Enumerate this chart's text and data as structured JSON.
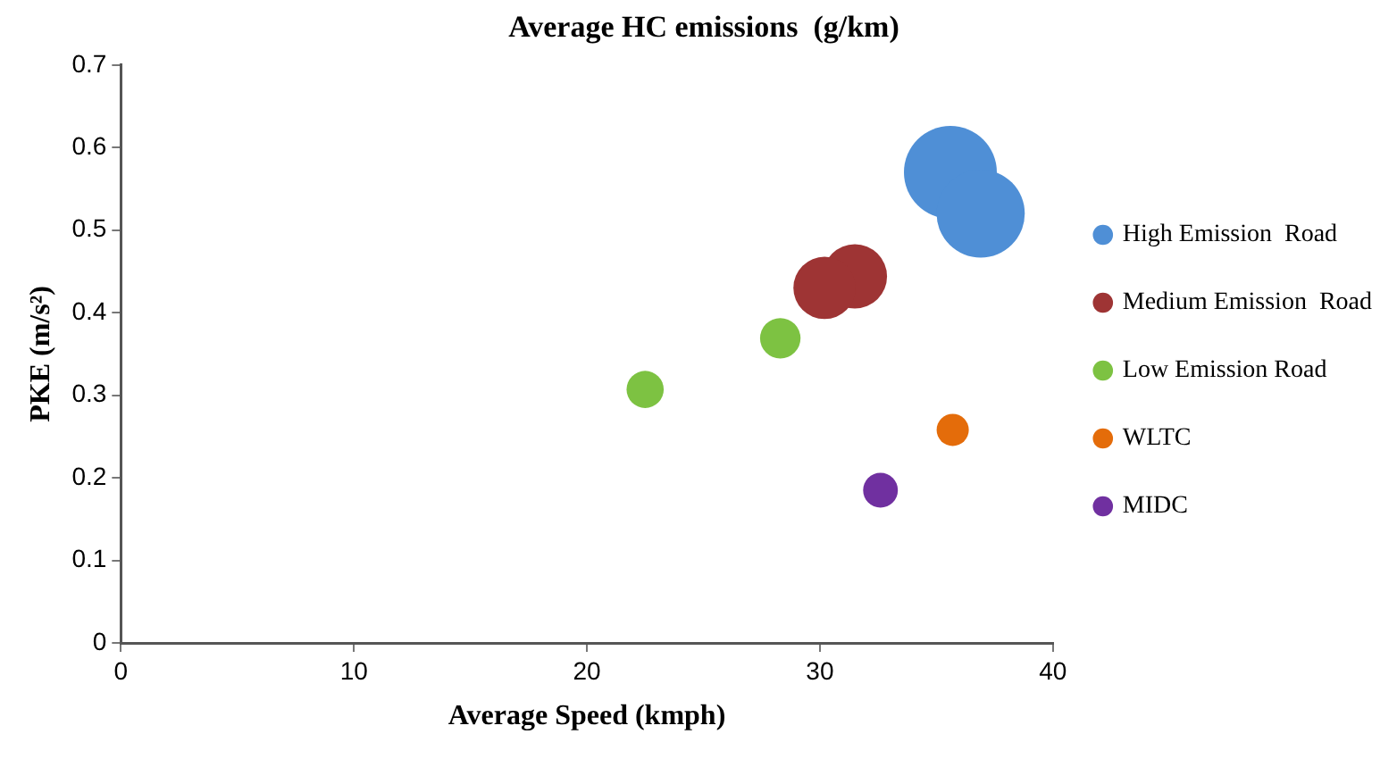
{
  "chart_data": {
    "type": "bubble",
    "title": "Average HC emissions  (g/km)",
    "xlabel": "Average Speed (kmph)",
    "ylabel": "PKE (m/s²)",
    "xlim": [
      0,
      40
    ],
    "xticks": [
      0,
      10,
      20,
      30,
      40
    ],
    "ylim": [
      0,
      0.7
    ],
    "yticks": [
      0,
      0.1,
      0.2,
      0.3,
      0.4,
      0.5,
      0.6,
      0.7
    ],
    "grid": false,
    "legend": "right",
    "marker": "circle",
    "series": [
      {
        "name": "High Emission  Road",
        "color": "#4f8fd6",
        "x": [
          35.6,
          36.9
        ],
        "values": [
          0.57,
          0.52
        ],
        "sizes": [
          1,
          0.9
        ]
      },
      {
        "name": "Medium Emission  Road",
        "color": "#9e3434",
        "x": [
          31.5,
          30.2
        ],
        "values": [
          0.444,
          0.43
        ],
        "sizes": [
          0.48,
          0.45
        ]
      },
      {
        "name": "Low Emission Road",
        "color": "#7dc242",
        "x": [
          28.3,
          22.5
        ],
        "values": [
          0.369,
          0.307
        ],
        "sizes": [
          0.19,
          0.16
        ]
      },
      {
        "name": "WLTC",
        "color": "#e46c0a",
        "x": [
          35.7
        ],
        "values": [
          0.258
        ],
        "sizes": [
          0.12
        ]
      },
      {
        "name": "MIDC",
        "color": "#7030a0",
        "x": [
          32.6
        ],
        "values": [
          0.185
        ],
        "sizes": [
          0.14
        ]
      }
    ]
  }
}
